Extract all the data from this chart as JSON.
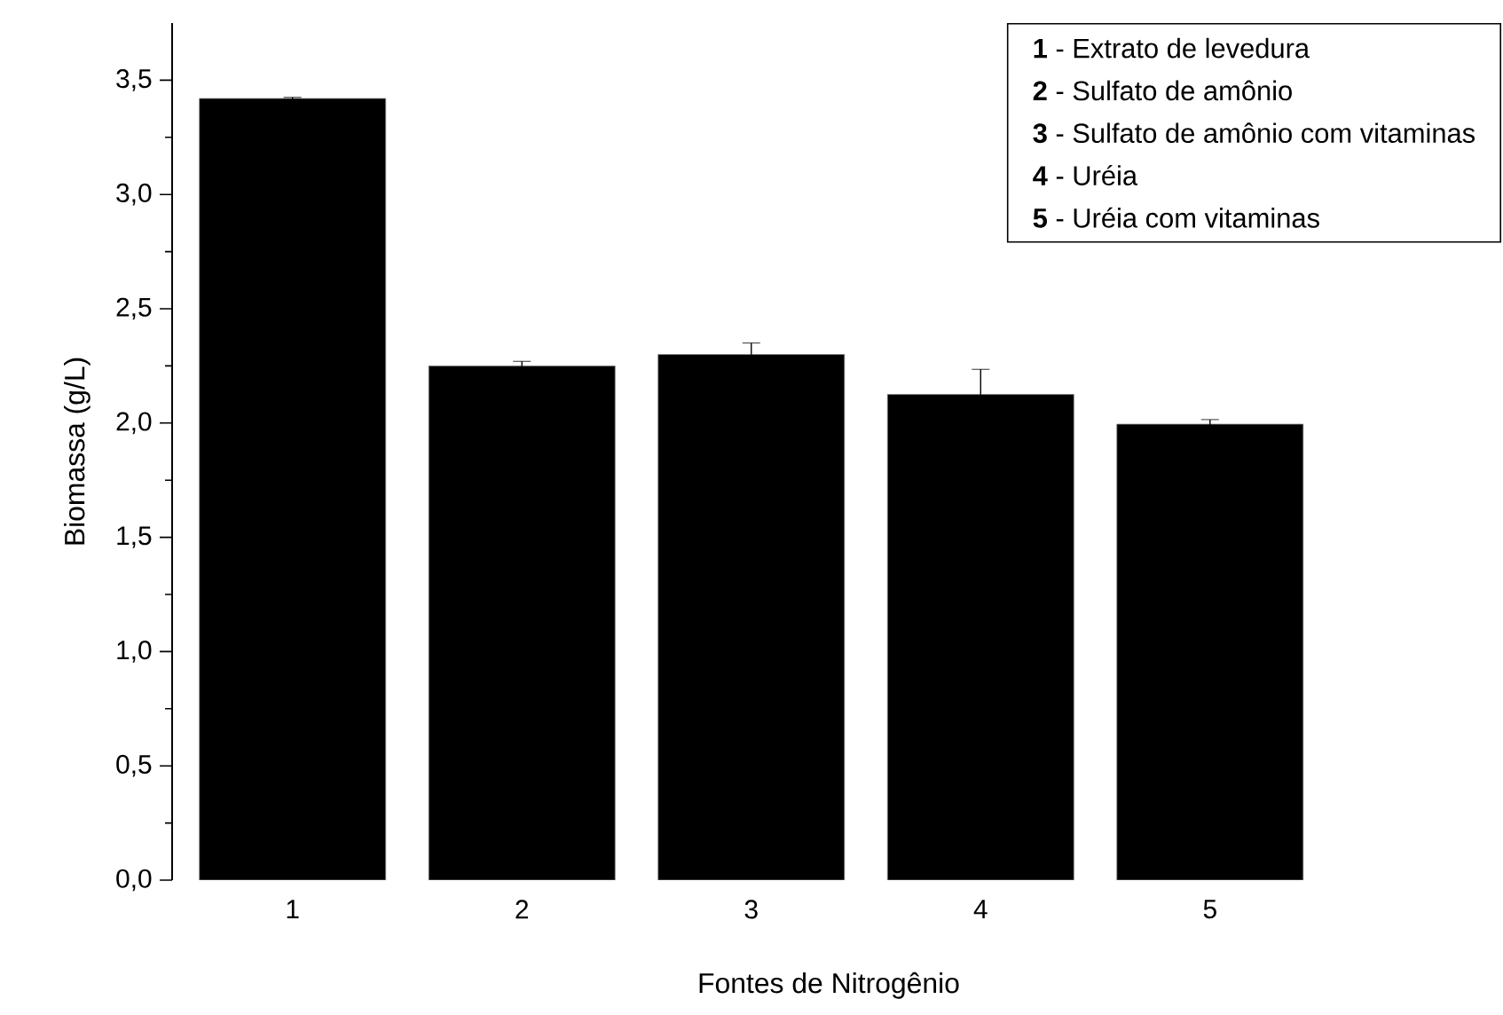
{
  "chart_data": {
    "type": "bar",
    "xlabel": "Fontes de Nitrogênio",
    "ylabel": "Biomassa (g/L)",
    "categories": [
      "1",
      "2",
      "3",
      "4",
      "5"
    ],
    "values": [
      3.42,
      2.25,
      2.3,
      2.125,
      1.995
    ],
    "errors": [
      0.005,
      0.02,
      0.05,
      0.11,
      0.02
    ],
    "color": "#000000",
    "ylim": [
      0,
      3.75
    ],
    "yticks": [
      {
        "value": 0,
        "label": "0,0"
      },
      {
        "value": 0.25,
        "label": null
      },
      {
        "value": 0.5,
        "label": "0,5"
      },
      {
        "value": 0.75,
        "label": null
      },
      {
        "value": 1.0,
        "label": "1,0"
      },
      {
        "value": 1.25,
        "label": null
      },
      {
        "value": 1.5,
        "label": "1,5"
      },
      {
        "value": 1.75,
        "label": null
      },
      {
        "value": 2.0,
        "label": "2,0"
      },
      {
        "value": 2.25,
        "label": null
      },
      {
        "value": 2.5,
        "label": "2,5"
      },
      {
        "value": 2.75,
        "label": null
      },
      {
        "value": 3.0,
        "label": "3,0"
      },
      {
        "value": 3.25,
        "label": null
      },
      {
        "value": 3.5,
        "label": "3,5"
      }
    ],
    "annotations": [
      "**1** - Extrato de levedura",
      "**2** - Sulfato de amônio",
      "**3** - Sulfato de amônio com vitaminas",
      "**4** - Uréia",
      "**5** - Uréia com vitaminas"
    ],
    "grid": false
  }
}
